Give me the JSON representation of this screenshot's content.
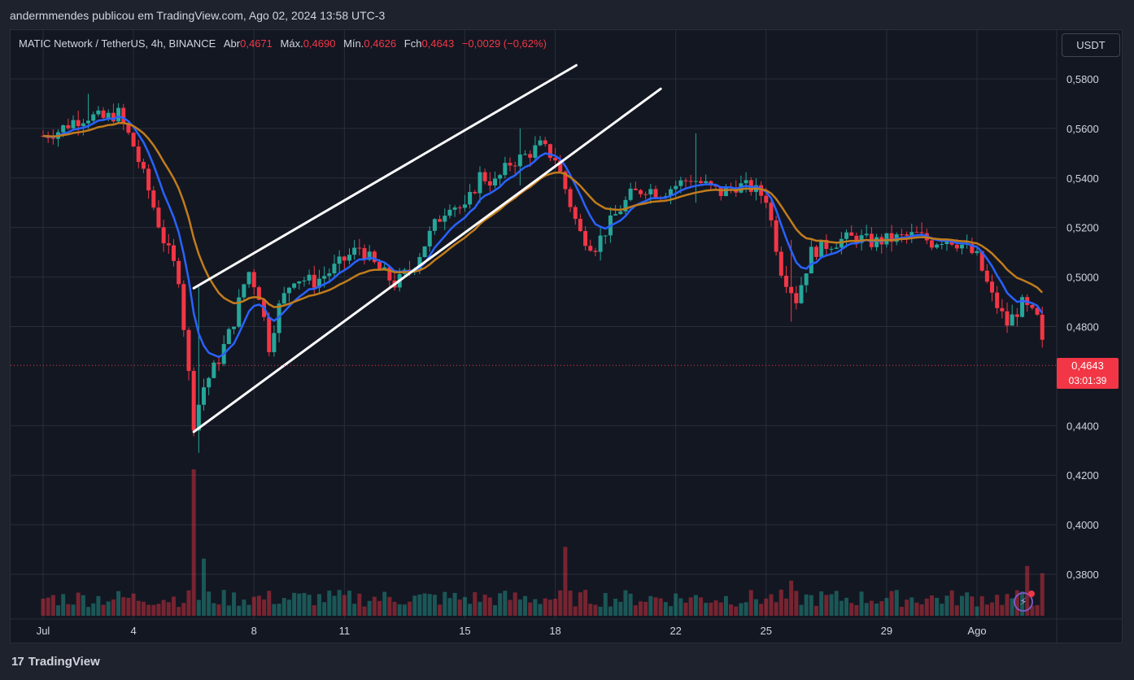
{
  "caption": "andermmendes publicou em TradingView.com, Ago 02, 2024 13:58 UTC-3",
  "legend": {
    "symbol": "MATIC Network / TetherUS, 4h, BINANCE",
    "open_label": "Abr",
    "open": "0,4671",
    "high_label": "Máx.",
    "high": "0,4690",
    "low_label": "Mín.",
    "low": "0,4626",
    "close_label": "Fch",
    "close": "0,4643",
    "change": "−0,0029 (−0,62%)"
  },
  "currency": "USDT",
  "price_tag": {
    "price": "0,4643",
    "countdown": "03:01:39"
  },
  "logo_text": "TradingView",
  "icons": {
    "bolt": "lightning-bolt-icon",
    "logo": "tradingview-logo-icon"
  },
  "colors": {
    "up": "#26a69a",
    "down": "#f23645",
    "ema_fast": "#2962ff",
    "ema_slow": "#c17c1c",
    "trendline": "#ffffff"
  },
  "chart_data": {
    "type": "candlestick",
    "interval": "4h",
    "y_ticks": [
      "0,5800",
      "0,5600",
      "0,5400",
      "0,5200",
      "0,5000",
      "0,4800",
      "0,4400",
      "0,4200",
      "0,4000",
      "0,3800"
    ],
    "y_tick_values": [
      0.58,
      0.56,
      0.54,
      0.52,
      0.5,
      0.48,
      0.44,
      0.42,
      0.4,
      0.38
    ],
    "ylim": [
      0.369,
      0.593
    ],
    "x_ticks": [
      "Jul",
      "4",
      "8",
      "11",
      "15",
      "18",
      "22",
      "25",
      "29",
      "Ago"
    ],
    "x_tick_days": [
      0,
      3,
      7,
      10,
      14,
      17,
      21,
      24,
      28,
      31
    ],
    "x_range_days": [
      0,
      37.5
    ],
    "current_price": 0.4643,
    "price_anchors_day_close": [
      [
        0,
        0.557
      ],
      [
        0.5,
        0.559
      ],
      [
        1,
        0.563
      ],
      [
        1.5,
        0.565
      ],
      [
        2,
        0.564
      ],
      [
        2.5,
        0.566
      ],
      [
        3,
        0.553
      ],
      [
        3.5,
        0.535
      ],
      [
        4,
        0.515
      ],
      [
        4.5,
        0.5
      ],
      [
        5,
        0.441
      ],
      [
        5.3,
        0.455
      ],
      [
        5.8,
        0.466
      ],
      [
        6.3,
        0.481
      ],
      [
        6.8,
        0.503
      ],
      [
        7.2,
        0.492
      ],
      [
        7.5,
        0.472
      ],
      [
        7.8,
        0.487
      ],
      [
        8.3,
        0.5
      ],
      [
        9,
        0.498
      ],
      [
        9.5,
        0.502
      ],
      [
        10,
        0.507
      ],
      [
        10.5,
        0.512
      ],
      [
        11,
        0.505
      ],
      [
        11.7,
        0.497
      ],
      [
        12.3,
        0.505
      ],
      [
        13,
        0.521
      ],
      [
        13.5,
        0.53
      ],
      [
        14,
        0.527
      ],
      [
        14.5,
        0.541
      ],
      [
        15,
        0.538
      ],
      [
        15.5,
        0.546
      ],
      [
        16,
        0.549
      ],
      [
        16.5,
        0.553
      ],
      [
        17,
        0.548
      ],
      [
        17.3,
        0.537
      ],
      [
        17.8,
        0.518
      ],
      [
        18.3,
        0.512
      ],
      [
        19,
        0.525
      ],
      [
        19.5,
        0.533
      ],
      [
        20,
        0.536
      ],
      [
        20.5,
        0.534
      ],
      [
        21,
        0.537
      ],
      [
        21.5,
        0.54
      ],
      [
        22,
        0.537
      ],
      [
        22.5,
        0.534
      ],
      [
        23,
        0.537
      ],
      [
        23.5,
        0.536
      ],
      [
        24,
        0.532
      ],
      [
        24.5,
        0.503
      ],
      [
        25,
        0.491
      ],
      [
        25.5,
        0.51
      ],
      [
        26,
        0.513
      ],
      [
        26.5,
        0.515
      ],
      [
        27,
        0.516
      ],
      [
        27.5,
        0.514
      ],
      [
        28,
        0.515
      ],
      [
        28.5,
        0.516
      ],
      [
        29,
        0.517
      ],
      [
        29.5,
        0.514
      ],
      [
        30,
        0.516
      ],
      [
        30.5,
        0.513
      ],
      [
        31,
        0.508
      ],
      [
        31.5,
        0.492
      ],
      [
        32,
        0.481
      ],
      [
        32.5,
        0.489
      ],
      [
        33,
        0.483
      ],
      [
        33.3,
        0.4643
      ]
    ],
    "wick_extremes": [
      [
        1.5,
        0.574,
        0.56
      ],
      [
        5.1,
        0.496,
        0.429
      ],
      [
        15.8,
        0.56,
        0.537
      ],
      [
        21.7,
        0.558,
        0.53
      ],
      [
        24.8,
        0.515,
        0.482
      ],
      [
        33.3,
        0.469,
        0.457
      ]
    ],
    "volume_spikes_day": [
      [
        5.0,
        1.0
      ],
      [
        5.3,
        0.39
      ],
      [
        17.3,
        0.47
      ],
      [
        24.8,
        0.24
      ],
      [
        32.7,
        0.34
      ],
      [
        33.2,
        0.29
      ]
    ],
    "indicators": [
      {
        "type": "EMA",
        "color": "#2962ff",
        "role": "fast"
      },
      {
        "type": "EMA",
        "color": "#c17c1c",
        "role": "slow"
      }
    ],
    "trendlines": [
      {
        "from": [
          5.0,
          0.4955
        ],
        "to": [
          17.7,
          0.5855
        ]
      },
      {
        "from": [
          5.0,
          0.4375
        ],
        "to": [
          20.5,
          0.576
        ]
      }
    ]
  }
}
